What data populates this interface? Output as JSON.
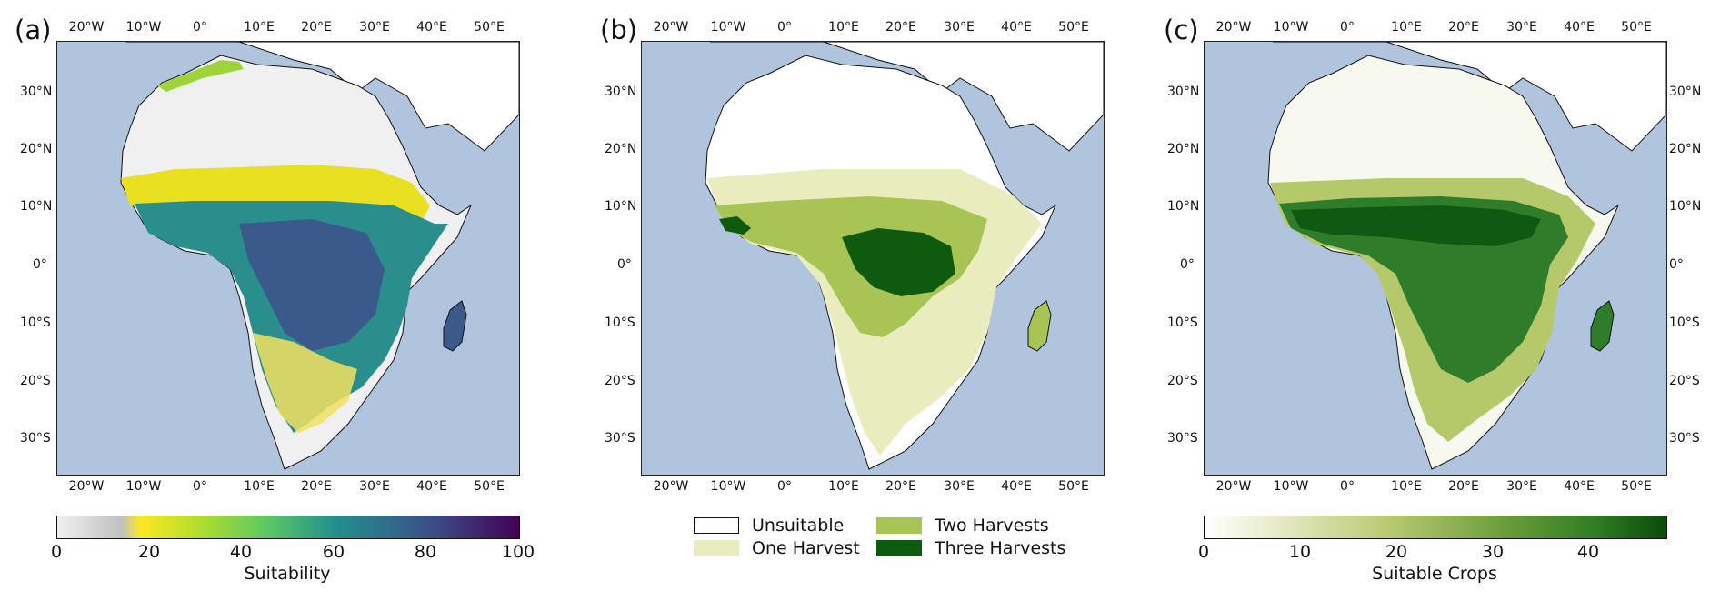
{
  "panels": [
    {
      "label": "(a)",
      "x_ticks": [
        "20°W",
        "10°W",
        "0°",
        "10°E",
        "20°E",
        "30°E",
        "40°E",
        "50°E"
      ],
      "y_ticks": [
        "30°N",
        "20°N",
        "10°N",
        "0°",
        "10°S",
        "20°S",
        "30°S"
      ],
      "colorbar": {
        "label": "Suitability",
        "ticks": [
          "0",
          "20",
          "40",
          "60",
          "80",
          "100"
        ],
        "range": [
          0,
          100
        ],
        "colors": [
          "#f0f0f0",
          "#c8c8c8",
          "#fde725",
          "#5ec962",
          "#21918c",
          "#3b528b",
          "#440154"
        ]
      },
      "palette": {
        "unsuitable": "#f0f0f0",
        "north_band": "#d0d0d0",
        "sahel": "#e8e020",
        "yellowgreen": "#9fd33a",
        "teal": "#2a8f8c",
        "deep": "#3b5a8c",
        "south": "#f2e060"
      }
    },
    {
      "label": "(b)",
      "x_ticks": [
        "20°W",
        "10°W",
        "0°",
        "10°E",
        "20°E",
        "30°E",
        "40°E",
        "50°E"
      ],
      "y_ticks": [
        "30°N",
        "20°N",
        "10°N",
        "0°",
        "10°S",
        "20°S",
        "30°S"
      ],
      "legend": [
        {
          "label": "Unsuitable",
          "color": "#ffffff"
        },
        {
          "label": "One Harvest",
          "color": "#e9ecbd"
        },
        {
          "label": "Two Harvests",
          "color": "#a8c454"
        },
        {
          "label": "Three Harvests",
          "color": "#0e5a0e"
        }
      ]
    },
    {
      "label": "(c)",
      "x_ticks": [
        "20°W",
        "10°W",
        "0°",
        "10°E",
        "20°E",
        "30°E",
        "40°E",
        "50°E"
      ],
      "y_ticks": [
        "30°N",
        "20°N",
        "10°N",
        "0°",
        "10°S",
        "20°S",
        "30°S"
      ],
      "y_ticks_right": [
        "30°N",
        "20°N",
        "10°N",
        "0°",
        "10°S",
        "20°S",
        "30°S"
      ],
      "colorbar": {
        "label": "Suitable Crops",
        "ticks": [
          "0",
          "10",
          "20",
          "30",
          "40"
        ],
        "range": [
          0,
          48
        ],
        "colors": [
          "#ffffff",
          "#e8ebc8",
          "#b9c970",
          "#6a9e3a",
          "#2e7d22",
          "#0b4a0b"
        ]
      },
      "palette": {
        "low": "#f7f9ee",
        "mid": "#b5c86a",
        "high": "#2f7d2a",
        "vhigh": "#0f5a12"
      }
    }
  ],
  "ocean_color": "#b0c4de"
}
